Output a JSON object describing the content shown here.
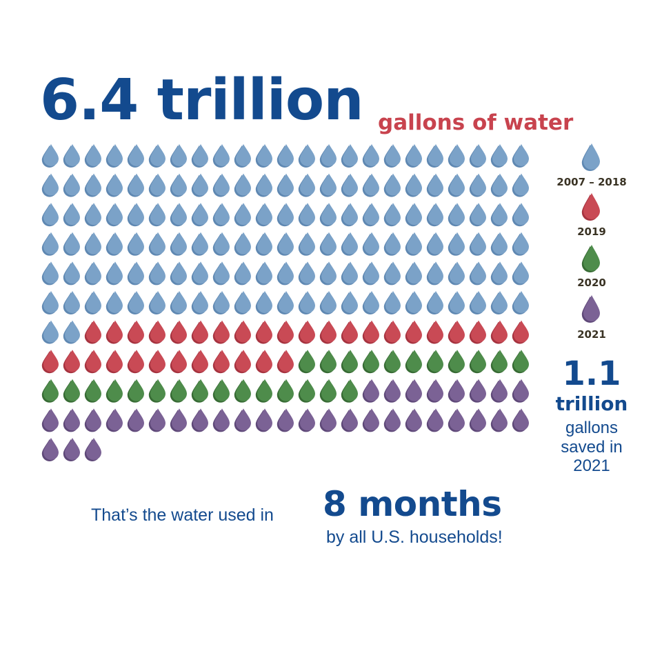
{
  "colors": {
    "navy": "#134a8e",
    "red_text": "#c8434e",
    "blue_drop": "#7ba2c8",
    "blue_drop_shadow": "#5f88b2",
    "red_drop": "#c94a55",
    "red_drop_shadow": "#a6333f",
    "green_drop": "#4e8c4b",
    "green_drop_shadow": "#376b34",
    "purple_drop": "#7b6295",
    "purple_drop_shadow": "#5e4878"
  },
  "headline": {
    "big": "6.4 trillion",
    "small": "gallons of water"
  },
  "legend": [
    {
      "label": "2007 – 2018",
      "series": "2007 – 2018"
    },
    {
      "label": "2019",
      "series": "2019"
    },
    {
      "label": "2020",
      "series": "2020"
    },
    {
      "label": "2021",
      "series": "2021"
    }
  ],
  "saved": {
    "number": "1.1",
    "unit": "trillion",
    "line1": "gallons",
    "line2": "saved in",
    "line3": "2021"
  },
  "footer": {
    "lead": "That’s the water used in",
    "big": "8 months",
    "tail": "by all U.S. households!"
  },
  "chart_data": {
    "type": "pictogram",
    "columns": 23,
    "total_icons": 233,
    "series": [
      {
        "name": "2007 – 2018",
        "count": 140,
        "color": "#7ba2c8"
      },
      {
        "name": "2019",
        "count": 33,
        "color": "#c94a55"
      },
      {
        "name": "2020",
        "count": 26,
        "color": "#4e8c4b"
      },
      {
        "name": "2021",
        "count": 34,
        "color": "#7b6295"
      }
    ]
  }
}
